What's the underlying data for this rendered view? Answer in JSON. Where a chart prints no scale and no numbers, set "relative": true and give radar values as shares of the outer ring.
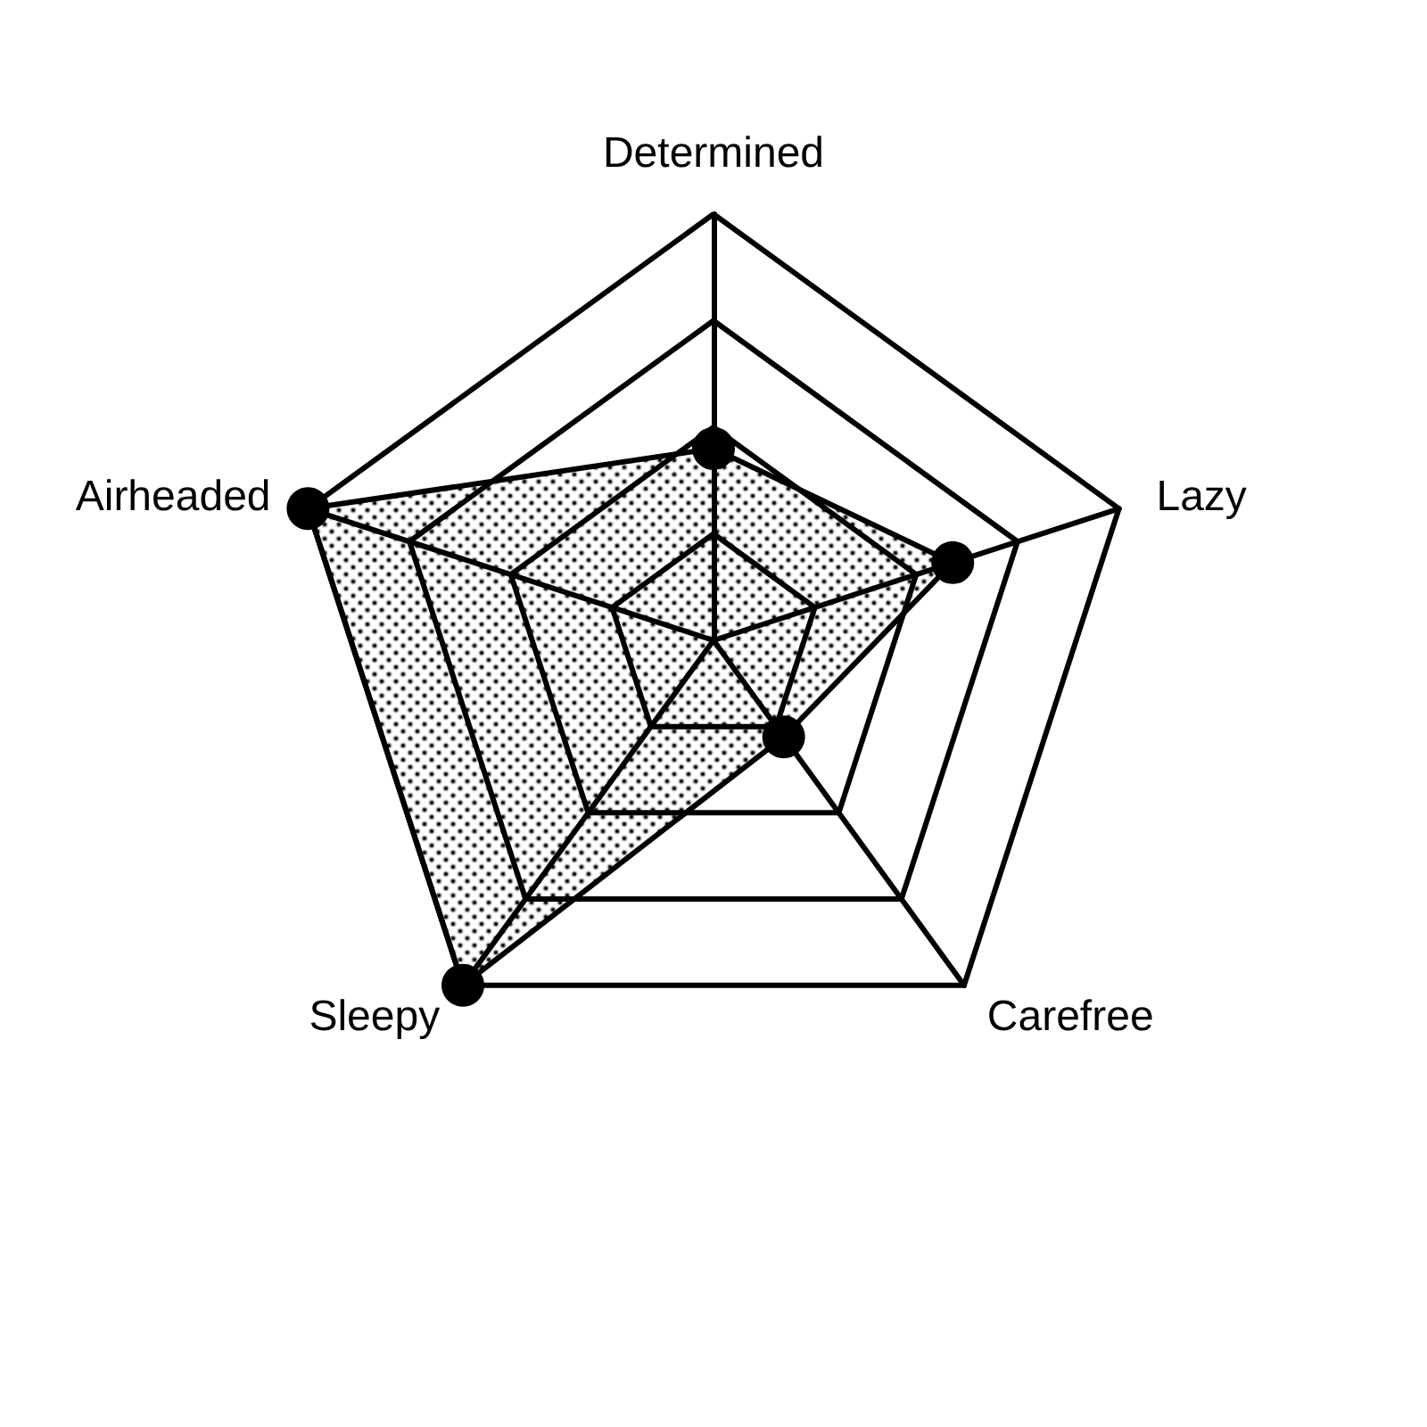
{
  "chart_data": {
    "type": "radar",
    "relative": true,
    "categories": [
      "Determined",
      "Lazy",
      "Carefree",
      "Sleepy",
      "Airheaded"
    ],
    "series": [
      {
        "color": "#000000",
        "values": [
          0.45,
          0.59,
          0.28,
          1.0,
          1.0
        ]
      }
    ],
    "marker": "circle"
  }
}
